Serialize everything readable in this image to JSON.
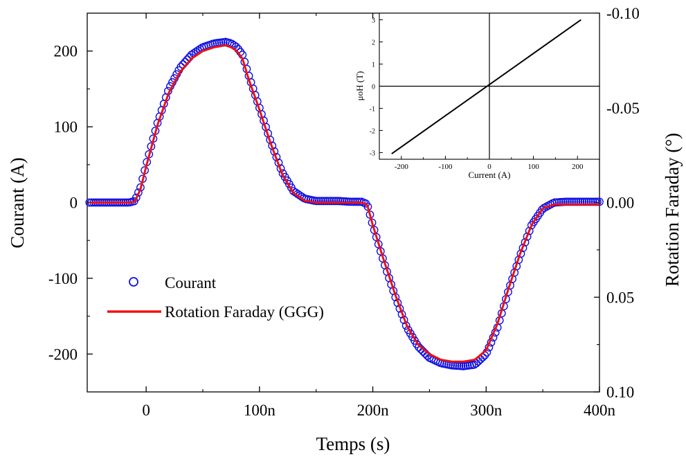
{
  "colors": {
    "courant_marker": "#1010e0",
    "faraday_line": "#ee1111",
    "axis": "#000000",
    "inset_line": "#000000"
  },
  "chart_data": [
    {
      "type": "line",
      "xlabel": "Temps (s)",
      "ylabel": "Courant (A)",
      "y2label": "Rotation Faraday (°)",
      "xlim": [
        -5.2e-08,
        4e-07
      ],
      "ylim": [
        -250,
        250
      ],
      "y2lim": [
        0.1,
        -0.1
      ],
      "x_ticks": [
        {
          "value": 0,
          "label": "0"
        },
        {
          "value": 1e-07,
          "label": "100n"
        },
        {
          "value": 2e-07,
          "label": "200n"
        },
        {
          "value": 3e-07,
          "label": "300n"
        },
        {
          "value": 4e-07,
          "label": "400n"
        }
      ],
      "y_ticks": [
        {
          "value": 200,
          "label": "200"
        },
        {
          "value": 100,
          "label": "100"
        },
        {
          "value": 0,
          "label": "0"
        },
        {
          "value": -100,
          "label": "-100"
        },
        {
          "value": -200,
          "label": "-200"
        }
      ],
      "y2_ticks": [
        {
          "value": -0.1,
          "label": "-0.10"
        },
        {
          "value": -0.05,
          "label": "-0.05"
        },
        {
          "value": 0.0,
          "label": "0.00"
        },
        {
          "value": 0.05,
          "label": "0.05"
        },
        {
          "value": 0.1,
          "label": "0.10"
        }
      ],
      "legend_position": "left-middle",
      "grid": false,
      "series": [
        {
          "name": "Courant",
          "style": "open-circle-markers",
          "color": "#1010e0",
          "x": [
            -5e-08,
            -3e-08,
            -1.5e-08,
            -1e-08,
            -5e-09,
            0,
            1e-08,
            2e-08,
            3e-08,
            4e-08,
            5e-08,
            6e-08,
            7e-08,
            7.5e-08,
            8e-08,
            8.5e-08,
            9e-08,
            1e-07,
            1.1e-07,
            1.2e-07,
            1.3e-07,
            1.4e-07,
            1.5e-07,
            1.6e-07,
            1.7e-07,
            1.8e-07,
            1.9e-07,
            1.95e-07,
            2e-07,
            2.1e-07,
            2.2e-07,
            2.3e-07,
            2.4e-07,
            2.5e-07,
            2.6e-07,
            2.7e-07,
            2.8e-07,
            2.9e-07,
            3e-07,
            3.1e-07,
            3.2e-07,
            3.3e-07,
            3.4e-07,
            3.5e-07,
            3.6e-07,
            3.7e-07,
            4e-07
          ],
          "y": [
            0,
            0,
            0,
            2,
            20,
            50,
            105,
            150,
            178,
            195,
            205,
            210,
            212,
            210,
            205,
            195,
            170,
            125,
            80,
            40,
            15,
            5,
            2,
            2,
            2,
            1,
            1,
            -2,
            -30,
            -80,
            -125,
            -165,
            -190,
            -205,
            -212,
            -215,
            -216,
            -214,
            -200,
            -165,
            -115,
            -70,
            -30,
            -8,
            0,
            1,
            1
          ]
        },
        {
          "name": "Rotation Faraday (GGG)",
          "style": "line",
          "color": "#ee1111",
          "axis": "y2",
          "x": [
            -5e-08,
            -3e-08,
            -1.5e-08,
            -1e-08,
            -5e-09,
            0,
            1e-08,
            2e-08,
            3e-08,
            4e-08,
            5e-08,
            6e-08,
            7e-08,
            7.5e-08,
            8e-08,
            8.5e-08,
            9e-08,
            1e-07,
            1.1e-07,
            1.2e-07,
            1.3e-07,
            1.4e-07,
            1.5e-07,
            1.6e-07,
            1.7e-07,
            1.8e-07,
            1.9e-07,
            1.95e-07,
            2e-07,
            2.1e-07,
            2.2e-07,
            2.3e-07,
            2.4e-07,
            2.5e-07,
            2.6e-07,
            2.7e-07,
            2.8e-07,
            2.9e-07,
            3e-07,
            3.1e-07,
            3.2e-07,
            3.3e-07,
            3.4e-07,
            3.5e-07,
            3.6e-07,
            3.7e-07,
            4e-07
          ],
          "y": [
            0,
            0,
            0,
            -0.0004,
            -0.007,
            -0.019,
            -0.041,
            -0.058,
            -0.069,
            -0.076,
            -0.08,
            -0.082,
            -0.083,
            -0.082,
            -0.08,
            -0.076,
            -0.066,
            -0.049,
            -0.031,
            -0.015,
            -0.005,
            -0.001,
            0,
            0,
            0,
            0,
            0,
            0.001,
            0.012,
            0.031,
            0.049,
            0.065,
            0.075,
            0.08,
            0.083,
            0.084,
            0.084,
            0.083,
            0.078,
            0.064,
            0.045,
            0.027,
            0.012,
            0.003,
            0.001,
            0.001,
            0.001
          ]
        }
      ]
    },
    {
      "type": "line",
      "xlabel": "Current (A)",
      "ylabel": "μoH (T)",
      "xlim": [
        -250,
        250
      ],
      "ylim": [
        -3.3,
        3.3
      ],
      "x_ticks": [
        {
          "value": -200,
          "label": "-200"
        },
        {
          "value": -100,
          "label": "-100"
        },
        {
          "value": 0,
          "label": "0"
        },
        {
          "value": 100,
          "label": "100"
        },
        {
          "value": 200,
          "label": "200"
        }
      ],
      "y_ticks": [
        {
          "value": 3,
          "label": "3"
        },
        {
          "value": 2,
          "label": "2"
        },
        {
          "value": 1,
          "label": "1"
        },
        {
          "value": 0,
          "label": "0"
        },
        {
          "value": -1,
          "label": "-1"
        },
        {
          "value": -2,
          "label": "-2"
        },
        {
          "value": -3,
          "label": "-3"
        }
      ],
      "zero_lines": true,
      "series": [
        {
          "color": "#000000",
          "x": [
            -222,
            208
          ],
          "y": [
            -3.05,
            3.0
          ]
        }
      ]
    }
  ]
}
